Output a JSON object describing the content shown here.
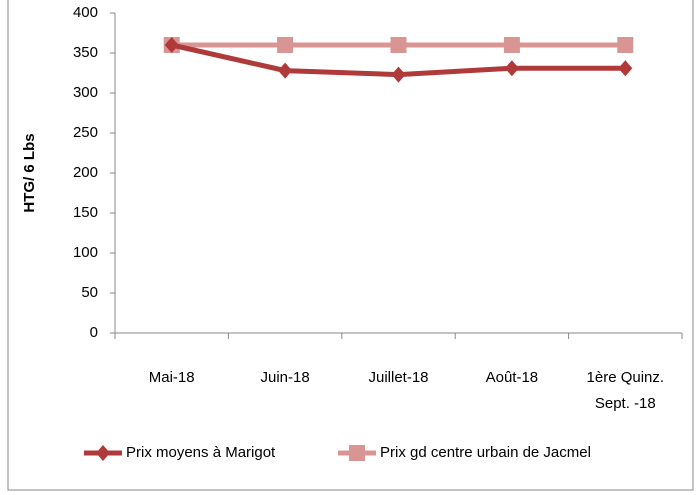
{
  "chart_data": {
    "type": "line",
    "y_label": "HTG/ 6 Lbs",
    "categories": [
      "Mai-18",
      "Juin-18",
      "Juillet-18",
      "Août-18",
      "1ère Quinz. Sept. -18"
    ],
    "series": [
      {
        "name": "Prix moyens à Marigot",
        "color": "#b03a3a",
        "marker": "diamond",
        "values": [
          360,
          328,
          323,
          331,
          331
        ]
      },
      {
        "name": "Prix gd centre urbain de Jacmel",
        "color": "#d99594",
        "marker": "square",
        "values": [
          360,
          360,
          360,
          360,
          360
        ]
      }
    ],
    "ylim": [
      0,
      400
    ],
    "yticks": [
      0,
      50,
      100,
      150,
      200,
      250,
      300,
      350,
      400
    ],
    "grid": false,
    "legend": "bottom"
  }
}
